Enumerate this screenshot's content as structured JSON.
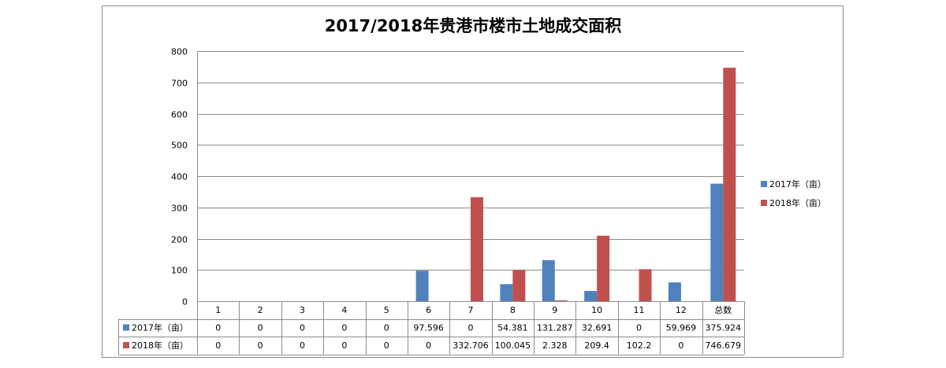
{
  "chart_data": {
    "type": "bar",
    "title": "2017/2018年贵港市楼市土地成交面积",
    "xlabel": "",
    "ylabel": "",
    "ylim": [
      0,
      800
    ],
    "yticks": [
      0,
      100,
      200,
      300,
      400,
      500,
      600,
      700,
      800
    ],
    "grid": true,
    "legend_position": "right",
    "categories": [
      "1",
      "2",
      "3",
      "4",
      "5",
      "6",
      "7",
      "8",
      "9",
      "10",
      "11",
      "12",
      "总数"
    ],
    "series": [
      {
        "name": "2017年（亩）",
        "color": "#4F81BD",
        "values": [
          0,
          0,
          0,
          0,
          0,
          97.596,
          0,
          54.381,
          131.287,
          32.691,
          0,
          59.969,
          375.924
        ],
        "value_labels": [
          "0",
          "0",
          "0",
          "0",
          "0",
          "97.596",
          "0",
          "54.381",
          "131.287",
          "32.691",
          "0",
          "59.969",
          "375.924"
        ]
      },
      {
        "name": "2018年（亩）",
        "color": "#C0504D",
        "values": [
          0,
          0,
          0,
          0,
          0,
          0,
          332.706,
          100.045,
          2.328,
          209.4,
          102.2,
          0,
          746.679
        ],
        "value_labels": [
          "0",
          "0",
          "0",
          "0",
          "0",
          "0",
          "332.706",
          "100.045",
          "2.328",
          "209.4",
          "102.2",
          "0",
          "746.679"
        ]
      }
    ]
  }
}
